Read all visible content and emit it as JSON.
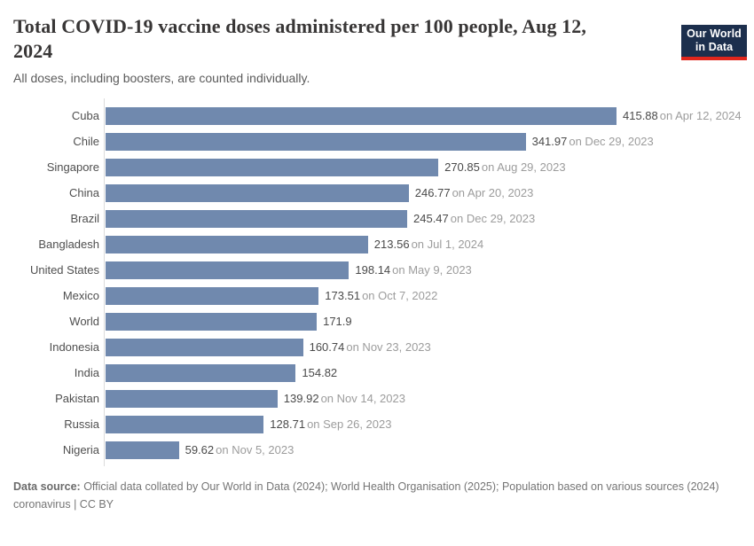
{
  "header": {
    "title": "Total COVID-19 vaccine doses administered per 100 people, Aug 12, 2024",
    "subtitle": "All doses, including boosters, are counted individually.",
    "logo": {
      "line1": "Our World",
      "line2": "in Data",
      "bg_color": "#1c2f4d",
      "accent_color": "#e0261c"
    }
  },
  "chart_data": {
    "type": "bar",
    "orientation": "horizontal",
    "title": "Total COVID-19 vaccine doses administered per 100 people, Aug 12, 2024",
    "categories": [
      "Cuba",
      "Chile",
      "Singapore",
      "China",
      "Brazil",
      "Bangladesh",
      "United States",
      "Mexico",
      "World",
      "Indonesia",
      "India",
      "Pakistan",
      "Russia",
      "Nigeria"
    ],
    "values": [
      415.88,
      341.97,
      270.85,
      246.77,
      245.47,
      213.56,
      198.14,
      173.51,
      171.9,
      160.74,
      154.82,
      139.92,
      128.71,
      59.62
    ],
    "value_labels": [
      "415.88",
      "341.97",
      "270.85",
      "246.77",
      "245.47",
      "213.56",
      "198.14",
      "173.51",
      "171.9",
      "160.74",
      "154.82",
      "139.92",
      "128.71",
      "59.62"
    ],
    "date_labels": [
      "on Apr 12, 2024",
      "on Dec 29, 2023",
      "on Aug 29, 2023",
      "on Apr 20, 2023",
      "on Dec 29, 2023",
      "on Jul 1, 2024",
      "on May 9, 2023",
      "on Oct 7, 2022",
      "",
      "on Nov 23, 2023",
      "",
      "on Nov 14, 2023",
      "on Sep 26, 2023",
      "on Nov 5, 2023"
    ],
    "xlim": [
      0,
      415.88
    ],
    "bar_color": "#7089ae",
    "grid": false,
    "legend": "none"
  },
  "footer": {
    "source_bold": "Data source:",
    "source_rest": " Official data collated by Our World in Data (2024); World Health Organisation (2025); Population based on various sources (2024)",
    "license": "coronavirus | CC BY"
  }
}
